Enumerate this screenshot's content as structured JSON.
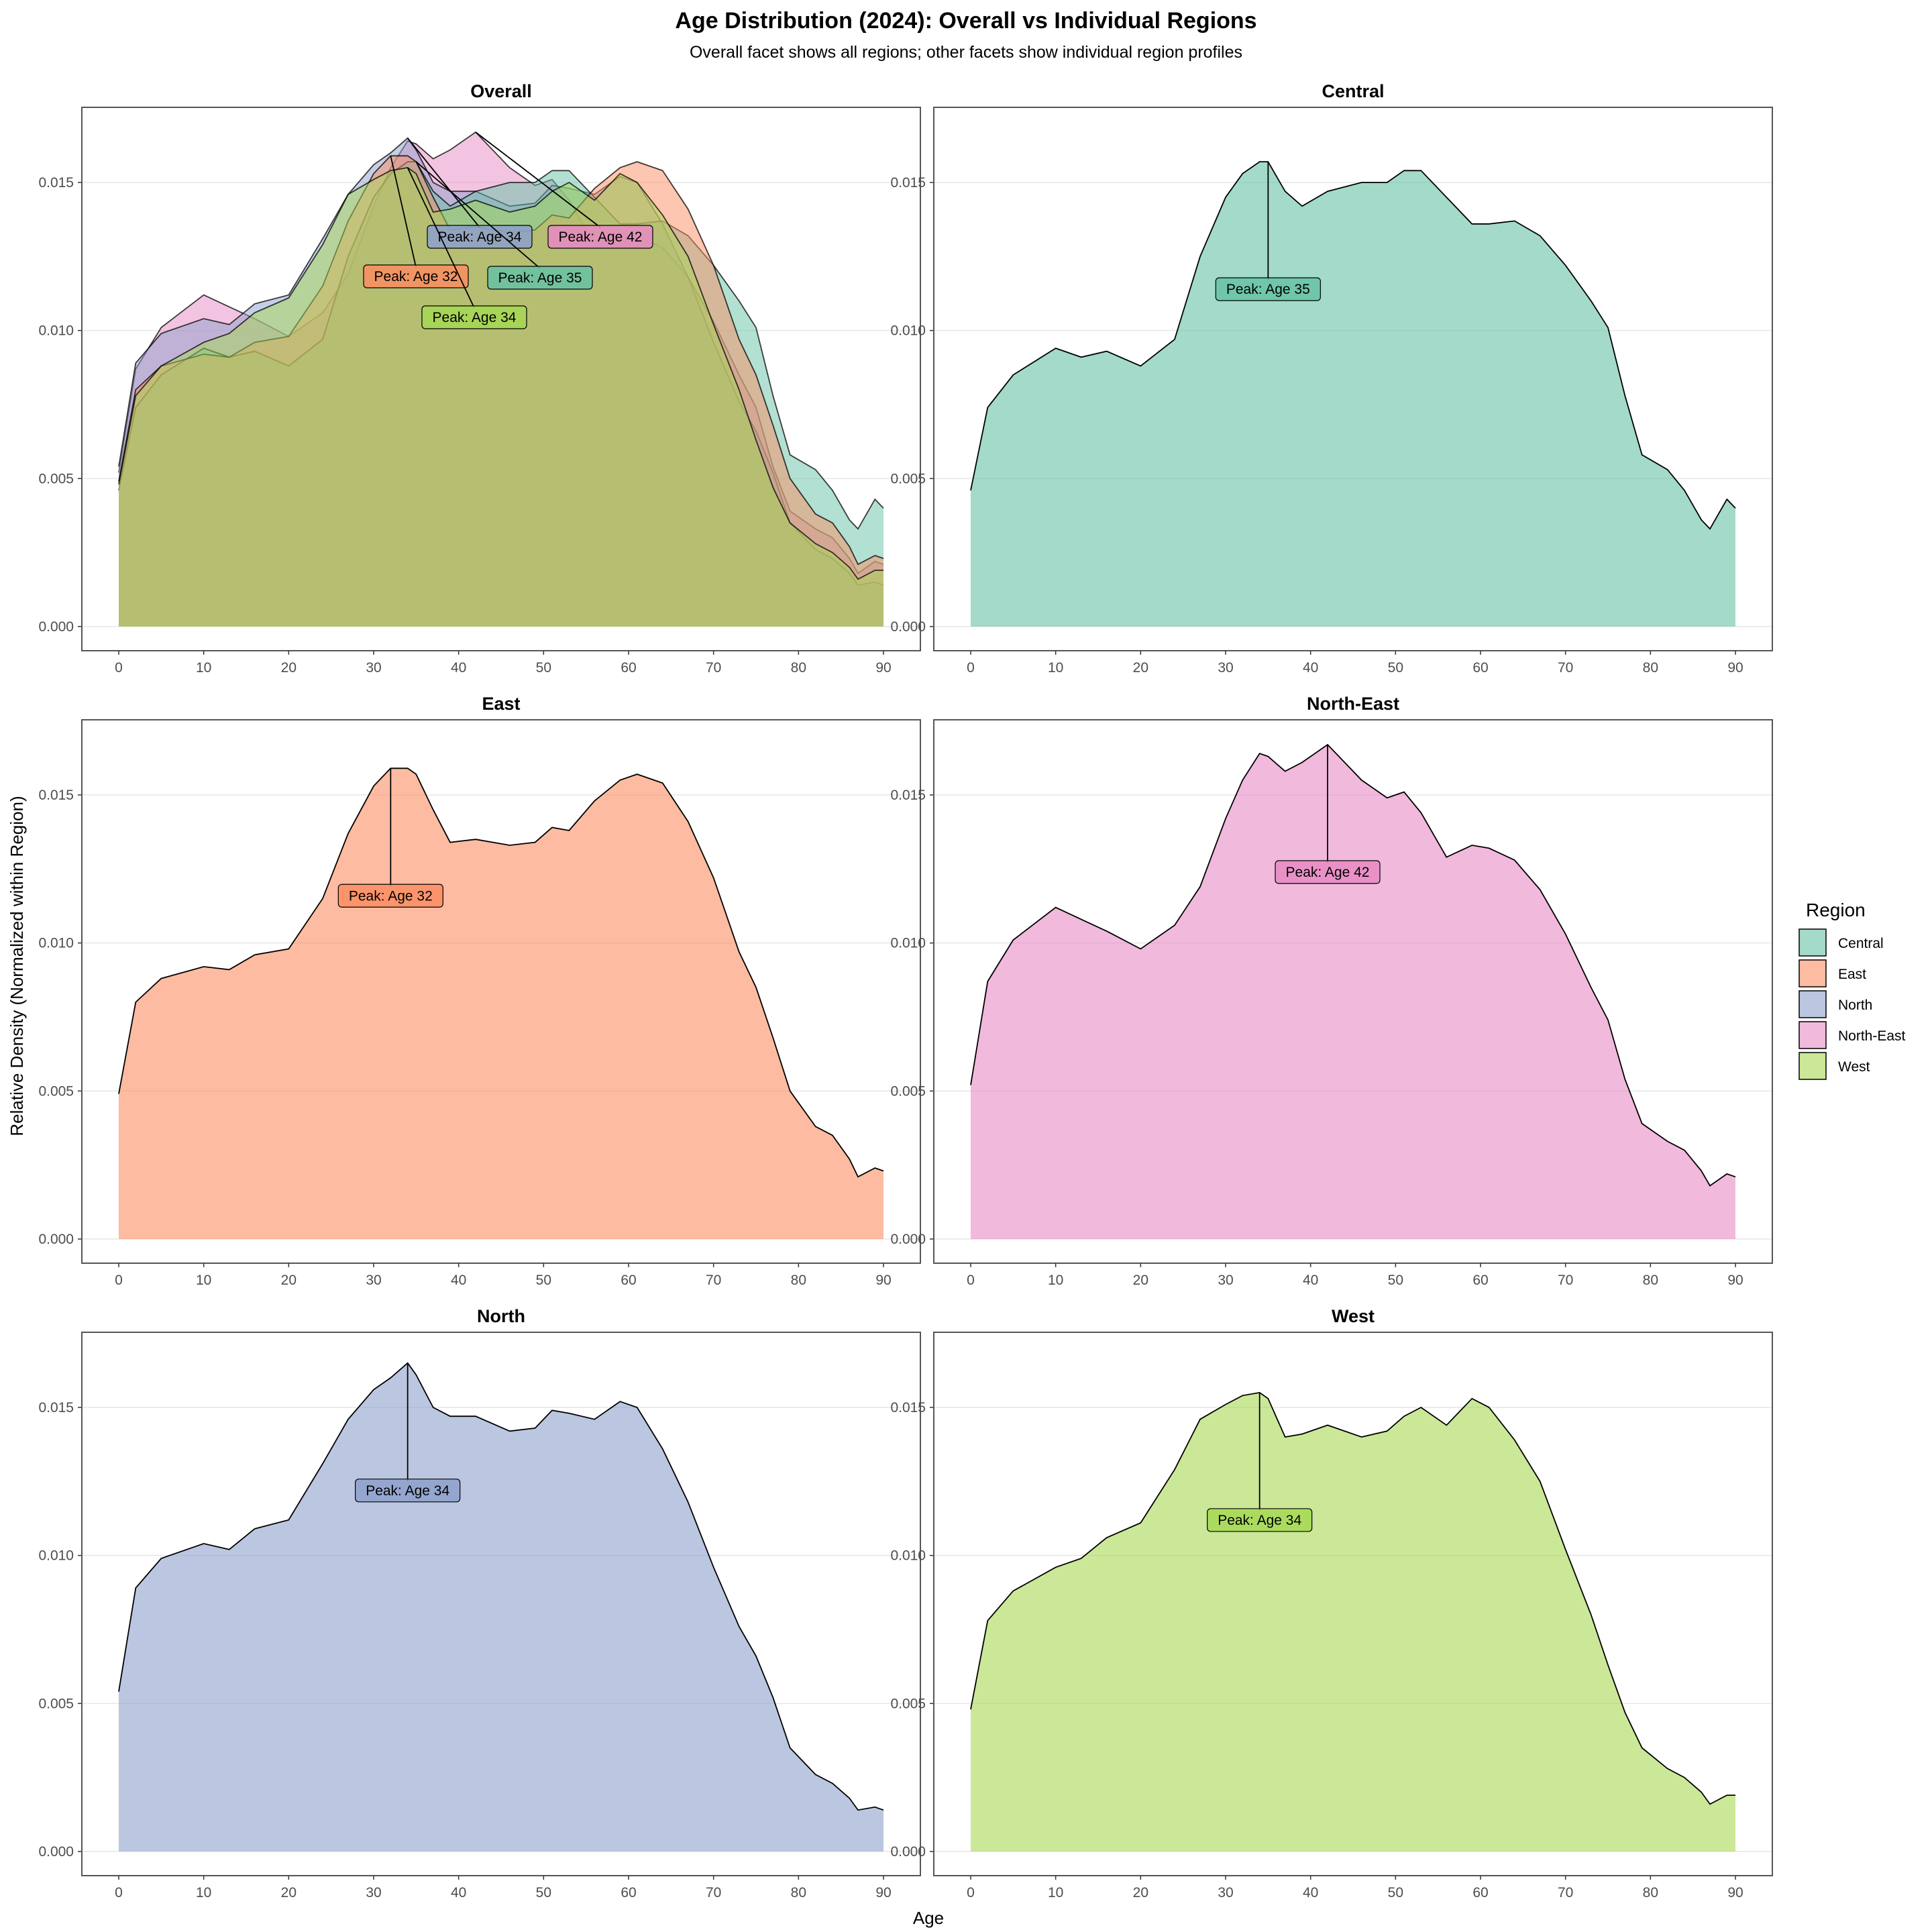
{
  "title": "Age Distribution (2024): Overall vs Individual Regions",
  "subtitle": "Overall facet shows all regions; other facets show individual region profiles",
  "xlabel": "Age",
  "ylabel": "Relative Density (Normalized within Region)",
  "legend_title": "Region",
  "chart_data": {
    "type": "area",
    "xlim": [
      0,
      90
    ],
    "ylim": [
      0,
      0.0165
    ],
    "x_ticks": [
      "0",
      "10",
      "20",
      "30",
      "40",
      "50",
      "60",
      "70",
      "80",
      "90"
    ],
    "y_ticks": [
      "0.000",
      "0.005",
      "0.010",
      "0.015"
    ],
    "y_tick_values": [
      0,
      0.005,
      0.01,
      0.015
    ],
    "grid": true,
    "legend_position": "right",
    "x": [
      0,
      2,
      5,
      10,
      13,
      16,
      20,
      24,
      27,
      30,
      32,
      34,
      35,
      37,
      39,
      42,
      46,
      49,
      51,
      53,
      56,
      59,
      61,
      64,
      67,
      70,
      73,
      75,
      77,
      79,
      82,
      84,
      86,
      87,
      89,
      90
    ],
    "series": [
      {
        "name": "Central",
        "color": "#66c2a5",
        "peak_age": 35,
        "peak_label": "Peak: Age 35",
        "values": [
          0.0046,
          0.0074,
          0.0085,
          0.0094,
          0.0091,
          0.0093,
          0.0088,
          0.0097,
          0.0125,
          0.0145,
          0.0153,
          0.0157,
          0.0157,
          0.0147,
          0.0142,
          0.0147,
          0.015,
          0.015,
          0.0154,
          0.0154,
          0.0145,
          0.0136,
          0.0136,
          0.0137,
          0.0132,
          0.0122,
          0.011,
          0.0101,
          0.0078,
          0.0058,
          0.0053,
          0.0046,
          0.0036,
          0.0033,
          0.0043,
          0.004
        ]
      },
      {
        "name": "East",
        "color": "#fc8d62",
        "peak_age": 32,
        "peak_label": "Peak: Age 32",
        "values": [
          0.0049,
          0.008,
          0.0088,
          0.0092,
          0.0091,
          0.0096,
          0.0098,
          0.0115,
          0.0137,
          0.0153,
          0.0159,
          0.0159,
          0.0157,
          0.0145,
          0.0134,
          0.0135,
          0.0133,
          0.0134,
          0.0139,
          0.0138,
          0.0148,
          0.0155,
          0.0157,
          0.0154,
          0.0141,
          0.0122,
          0.0097,
          0.0085,
          0.0068,
          0.005,
          0.0038,
          0.0035,
          0.0027,
          0.0021,
          0.0024,
          0.0023
        ]
      },
      {
        "name": "North",
        "color": "#8da0cb",
        "peak_age": 34,
        "peak_label": "Peak: Age 34",
        "values": [
          0.0054,
          0.0089,
          0.0099,
          0.0104,
          0.0102,
          0.0109,
          0.0112,
          0.0131,
          0.0146,
          0.0156,
          0.016,
          0.0165,
          0.0161,
          0.015,
          0.0147,
          0.0147,
          0.0142,
          0.0143,
          0.0149,
          0.0148,
          0.0146,
          0.0152,
          0.015,
          0.0136,
          0.0118,
          0.0096,
          0.0076,
          0.0066,
          0.0052,
          0.0035,
          0.0026,
          0.0023,
          0.0018,
          0.0014,
          0.0015,
          0.0014
        ]
      },
      {
        "name": "North-East",
        "color": "#e78ac3",
        "peak_age": 42,
        "peak_label": "Peak: Age 42",
        "values": [
          0.0052,
          0.0087,
          0.0101,
          0.0112,
          0.0108,
          0.0104,
          0.0098,
          0.0106,
          0.0119,
          0.0142,
          0.0155,
          0.0164,
          0.0163,
          0.0158,
          0.0161,
          0.0167,
          0.0155,
          0.0149,
          0.0151,
          0.0144,
          0.0129,
          0.0133,
          0.0132,
          0.0128,
          0.0118,
          0.0103,
          0.0085,
          0.0074,
          0.0054,
          0.0039,
          0.0033,
          0.003,
          0.0023,
          0.0018,
          0.0022,
          0.0021
        ]
      },
      {
        "name": "West",
        "color": "#a6d854",
        "peak_age": 34,
        "peak_label": "Peak: Age 34",
        "values": [
          0.0048,
          0.0078,
          0.0088,
          0.0096,
          0.0099,
          0.0106,
          0.0111,
          0.0129,
          0.0146,
          0.0151,
          0.0154,
          0.0155,
          0.0153,
          0.014,
          0.0141,
          0.0144,
          0.014,
          0.0142,
          0.0147,
          0.015,
          0.0144,
          0.0153,
          0.015,
          0.0139,
          0.0125,
          0.0102,
          0.008,
          0.0063,
          0.0047,
          0.0035,
          0.0028,
          0.0025,
          0.002,
          0.0016,
          0.0019,
          0.0019
        ]
      }
    ],
    "facets": [
      {
        "title": "Overall",
        "series": [
          "North-East",
          "North",
          "Central",
          "East",
          "West"
        ]
      },
      {
        "title": "Central",
        "series": [
          "Central"
        ]
      },
      {
        "title": "East",
        "series": [
          "East"
        ]
      },
      {
        "title": "North-East",
        "series": [
          "North-East"
        ]
      },
      {
        "title": "North",
        "series": [
          "North"
        ]
      },
      {
        "title": "West",
        "series": [
          "West"
        ]
      }
    ]
  }
}
